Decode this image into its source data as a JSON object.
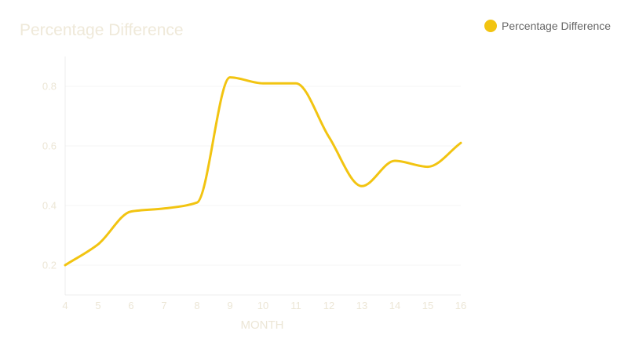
{
  "chart_data": {
    "type": "line",
    "title": "Percentage Difference",
    "xlabel": "MONTH",
    "ylabel": "",
    "x": [
      4,
      5,
      6,
      7,
      8,
      9,
      10,
      11,
      12,
      13,
      14,
      15,
      16
    ],
    "series": [
      {
        "name": "Percentage Difference",
        "values": [
          0.2,
          0.27,
          0.38,
          0.39,
          0.41,
          0.83,
          0.81,
          0.81,
          0.63,
          0.465,
          0.55,
          0.53,
          0.61
        ]
      }
    ],
    "xlim": [
      4,
      16
    ],
    "ylim": [
      0.1,
      0.9
    ],
    "yticks": [
      0.2,
      0.4,
      0.6,
      0.8
    ],
    "grid": true,
    "legend": "top-right",
    "colors": {
      "line": "#f2c411",
      "grid": "#f4f4f4",
      "axis": "#ececec",
      "text": "#ece6d6"
    }
  }
}
